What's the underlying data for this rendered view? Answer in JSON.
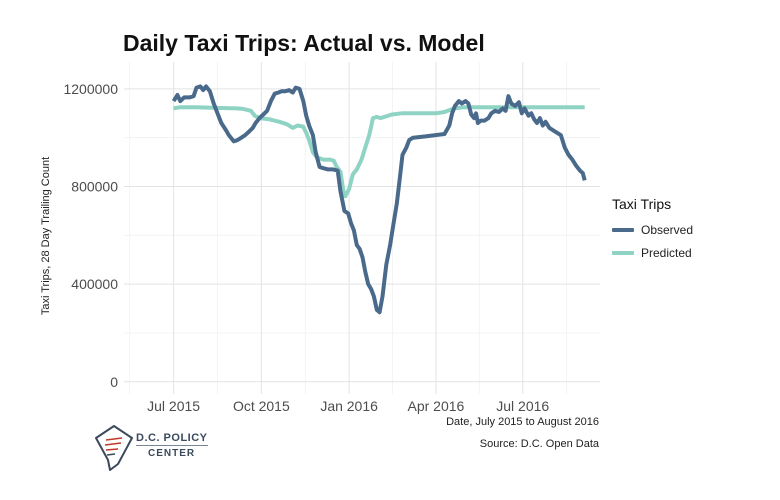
{
  "chart_data": {
    "type": "line",
    "title": "Daily Taxi Trips: Actual vs. Model",
    "xlabel": "Date, July 2015 to August 2016",
    "ylabel": "Taxi Trips, 28 Day Trailing Count",
    "source": "Source: D.C. Open Data",
    "xlim": [
      "2015-05-10",
      "2016-09-20"
    ],
    "ylim": [
      -50000,
      1310000
    ],
    "x_ticks": [
      "2015-07-01",
      "2015-10-01",
      "2016-01-01",
      "2016-04-01",
      "2016-07-01"
    ],
    "x_tick_labels": [
      "Jul 2015",
      "Oct 2015",
      "Jan 2016",
      "Apr 2016",
      "Jul 2016"
    ],
    "y_ticks": [
      0,
      400000,
      800000,
      1200000
    ],
    "y_tick_labels": [
      "0",
      "400000",
      "800000",
      "1200000"
    ],
    "grid": true,
    "legend": {
      "title": "Taxi Trips",
      "position": "right"
    },
    "series": [
      {
        "name": "Observed",
        "color": "#4a6a8c",
        "points": [
          [
            "2015-07-01",
            1150000
          ],
          [
            "2015-07-05",
            1175000
          ],
          [
            "2015-07-08",
            1150000
          ],
          [
            "2015-07-12",
            1165000
          ],
          [
            "2015-07-18",
            1165000
          ],
          [
            "2015-07-22",
            1170000
          ],
          [
            "2015-07-25",
            1205000
          ],
          [
            "2015-07-29",
            1210000
          ],
          [
            "2015-08-01",
            1195000
          ],
          [
            "2015-08-04",
            1210000
          ],
          [
            "2015-08-08",
            1190000
          ],
          [
            "2015-08-12",
            1140000
          ],
          [
            "2015-08-16",
            1100000
          ],
          [
            "2015-08-20",
            1060000
          ],
          [
            "2015-08-25",
            1030000
          ],
          [
            "2015-08-28",
            1010000
          ],
          [
            "2015-09-02",
            985000
          ],
          [
            "2015-09-06",
            990000
          ],
          [
            "2015-09-10",
            1000000
          ],
          [
            "2015-09-14",
            1010000
          ],
          [
            "2015-09-18",
            1025000
          ],
          [
            "2015-09-22",
            1040000
          ],
          [
            "2015-09-25",
            1060000
          ],
          [
            "2015-09-29",
            1080000
          ],
          [
            "2015-10-03",
            1095000
          ],
          [
            "2015-10-07",
            1110000
          ],
          [
            "2015-10-11",
            1150000
          ],
          [
            "2015-10-15",
            1180000
          ],
          [
            "2015-10-19",
            1185000
          ],
          [
            "2015-10-22",
            1190000
          ],
          [
            "2015-10-26",
            1190000
          ],
          [
            "2015-10-30",
            1195000
          ],
          [
            "2015-11-03",
            1185000
          ],
          [
            "2015-11-06",
            1205000
          ],
          [
            "2015-11-10",
            1200000
          ],
          [
            "2015-11-14",
            1150000
          ],
          [
            "2015-11-17",
            1090000
          ],
          [
            "2015-11-20",
            1050000
          ],
          [
            "2015-11-24",
            1010000
          ],
          [
            "2015-11-27",
            940000
          ],
          [
            "2015-12-01",
            880000
          ],
          [
            "2015-12-05",
            875000
          ],
          [
            "2015-12-10",
            870000
          ],
          [
            "2015-12-15",
            870000
          ],
          [
            "2015-12-20",
            865000
          ],
          [
            "2015-12-23",
            780000
          ],
          [
            "2015-12-27",
            700000
          ],
          [
            "2015-12-31",
            690000
          ],
          [
            "2016-01-03",
            650000
          ],
          [
            "2016-01-06",
            620000
          ],
          [
            "2016-01-09",
            560000
          ],
          [
            "2016-01-12",
            545000
          ],
          [
            "2016-01-15",
            510000
          ],
          [
            "2016-01-18",
            450000
          ],
          [
            "2016-01-21",
            400000
          ],
          [
            "2016-01-24",
            380000
          ],
          [
            "2016-01-27",
            350000
          ],
          [
            "2016-01-30",
            295000
          ],
          [
            "2016-02-02",
            285000
          ],
          [
            "2016-02-05",
            350000
          ],
          [
            "2016-02-09",
            480000
          ],
          [
            "2016-02-13",
            560000
          ],
          [
            "2016-02-17",
            660000
          ],
          [
            "2016-02-20",
            730000
          ],
          [
            "2016-02-23",
            830000
          ],
          [
            "2016-02-26",
            930000
          ],
          [
            "2016-03-01",
            960000
          ],
          [
            "2016-03-04",
            990000
          ],
          [
            "2016-03-08",
            1000000
          ],
          [
            "2016-03-20",
            1005000
          ],
          [
            "2016-04-10",
            1015000
          ],
          [
            "2016-04-15",
            1050000
          ],
          [
            "2016-04-18",
            1100000
          ],
          [
            "2016-04-21",
            1130000
          ],
          [
            "2016-04-25",
            1150000
          ],
          [
            "2016-04-28",
            1140000
          ],
          [
            "2016-05-02",
            1150000
          ],
          [
            "2016-05-05",
            1140000
          ],
          [
            "2016-05-08",
            1095000
          ],
          [
            "2016-05-11",
            1080000
          ],
          [
            "2016-05-13",
            1100000
          ],
          [
            "2016-05-15",
            1060000
          ],
          [
            "2016-05-18",
            1070000
          ],
          [
            "2016-05-22",
            1070000
          ],
          [
            "2016-05-26",
            1080000
          ],
          [
            "2016-05-29",
            1100000
          ],
          [
            "2016-06-02",
            1110000
          ],
          [
            "2016-06-06",
            1105000
          ],
          [
            "2016-06-10",
            1120000
          ],
          [
            "2016-06-13",
            1110000
          ],
          [
            "2016-06-16",
            1170000
          ],
          [
            "2016-06-19",
            1140000
          ],
          [
            "2016-06-23",
            1130000
          ],
          [
            "2016-06-27",
            1145000
          ],
          [
            "2016-06-30",
            1100000
          ],
          [
            "2016-07-03",
            1120000
          ],
          [
            "2016-07-07",
            1090000
          ],
          [
            "2016-07-10",
            1100000
          ],
          [
            "2016-07-13",
            1075000
          ],
          [
            "2016-07-16",
            1060000
          ],
          [
            "2016-07-19",
            1080000
          ],
          [
            "2016-07-22",
            1050000
          ],
          [
            "2016-07-25",
            1065000
          ],
          [
            "2016-07-29",
            1040000
          ],
          [
            "2016-08-02",
            1030000
          ],
          [
            "2016-08-06",
            1020000
          ],
          [
            "2016-08-10",
            1010000
          ],
          [
            "2016-08-14",
            960000
          ],
          [
            "2016-08-18",
            930000
          ],
          [
            "2016-08-22",
            910000
          ],
          [
            "2016-08-26",
            885000
          ],
          [
            "2016-08-30",
            865000
          ],
          [
            "2016-09-02",
            855000
          ],
          [
            "2016-09-04",
            825000
          ]
        ]
      },
      {
        "name": "Predicted",
        "color": "#8fd3c4",
        "points": [
          [
            "2015-07-01",
            1120000
          ],
          [
            "2015-07-08",
            1125000
          ],
          [
            "2015-07-25",
            1125000
          ],
          [
            "2015-08-15",
            1122000
          ],
          [
            "2015-09-05",
            1120000
          ],
          [
            "2015-09-12",
            1118000
          ],
          [
            "2015-09-20",
            1110000
          ],
          [
            "2015-09-24",
            1090000
          ],
          [
            "2015-09-30",
            1080000
          ],
          [
            "2015-10-10",
            1075000
          ],
          [
            "2015-10-20",
            1065000
          ],
          [
            "2015-10-28",
            1055000
          ],
          [
            "2015-11-03",
            1040000
          ],
          [
            "2015-11-08",
            1050000
          ],
          [
            "2015-11-14",
            1045000
          ],
          [
            "2015-11-17",
            1020000
          ],
          [
            "2015-11-20",
            990000
          ],
          [
            "2015-11-24",
            940000
          ],
          [
            "2015-11-28",
            920000
          ],
          [
            "2015-12-05",
            910000
          ],
          [
            "2015-12-12",
            910000
          ],
          [
            "2015-12-16",
            905000
          ],
          [
            "2015-12-19",
            880000
          ],
          [
            "2015-12-23",
            860000
          ],
          [
            "2015-12-26",
            780000
          ],
          [
            "2015-12-28",
            760000
          ],
          [
            "2016-01-01",
            790000
          ],
          [
            "2016-01-05",
            850000
          ],
          [
            "2016-01-09",
            870000
          ],
          [
            "2016-01-14",
            910000
          ],
          [
            "2016-01-18",
            960000
          ],
          [
            "2016-01-22",
            1010000
          ],
          [
            "2016-01-26",
            1080000
          ],
          [
            "2016-01-30",
            1085000
          ],
          [
            "2016-02-03",
            1080000
          ],
          [
            "2016-02-07",
            1085000
          ],
          [
            "2016-02-15",
            1095000
          ],
          [
            "2016-02-25",
            1100000
          ],
          [
            "2016-03-10",
            1100000
          ],
          [
            "2016-04-01",
            1100000
          ],
          [
            "2016-04-10",
            1105000
          ],
          [
            "2016-04-20",
            1120000
          ],
          [
            "2016-05-01",
            1125000
          ],
          [
            "2016-06-01",
            1125000
          ],
          [
            "2016-07-01",
            1125000
          ],
          [
            "2016-08-01",
            1125000
          ],
          [
            "2016-09-04",
            1125000
          ]
        ]
      }
    ]
  },
  "logo": {
    "line1": "D.C. POLICY",
    "line2": "CENTER"
  }
}
